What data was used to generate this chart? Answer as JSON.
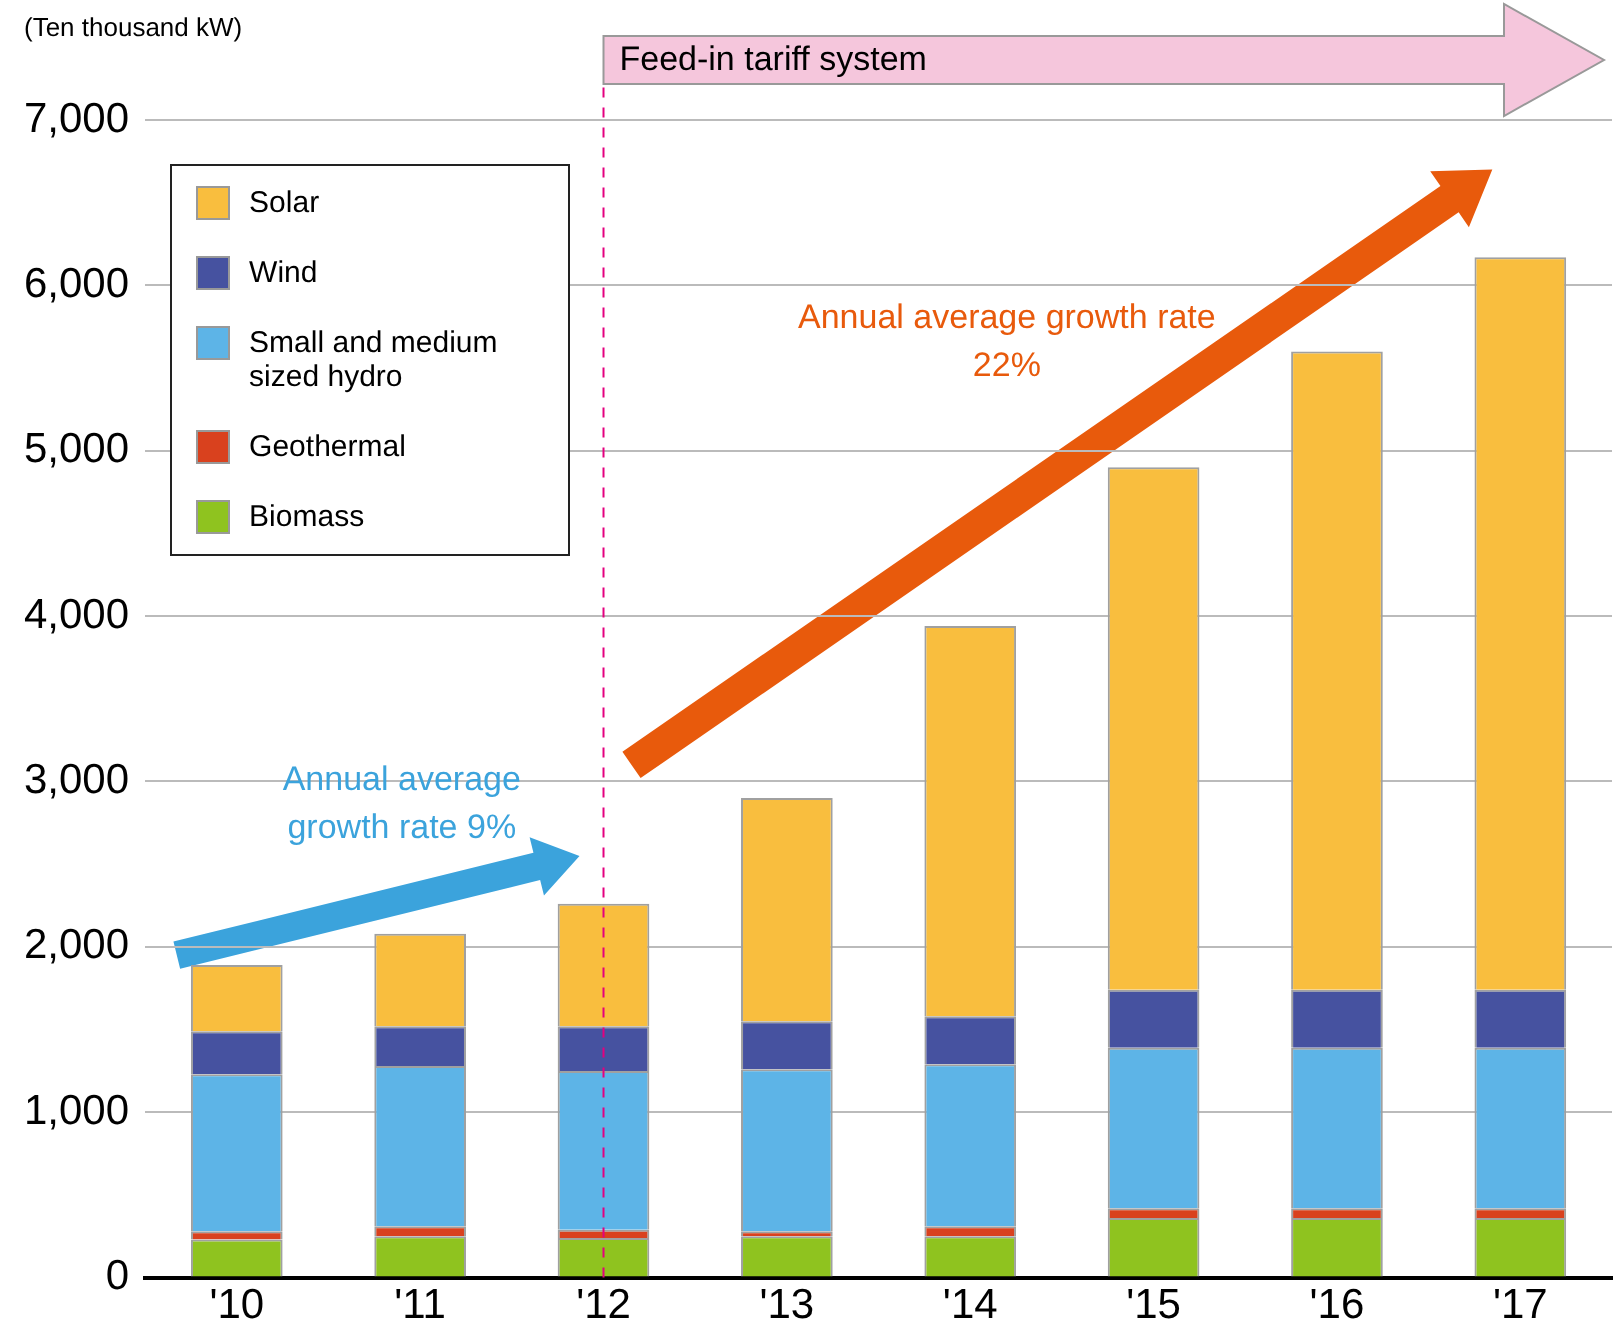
{
  "chart_data": {
    "type": "bar",
    "stacked": true,
    "ylabel": "(Ten thousand kW)",
    "categories": [
      "'10",
      "'11",
      "'12",
      "'13",
      "'14",
      "'15",
      "'16",
      "'17"
    ],
    "series": [
      {
        "name": "Biomass",
        "color": "#8fc31f",
        "values": [
          230,
          250,
          240,
          250,
          250,
          360,
          360,
          360
        ]
      },
      {
        "name": "Geothermal",
        "color": "#d9411e",
        "values": [
          50,
          60,
          50,
          30,
          60,
          60,
          60,
          60
        ]
      },
      {
        "name": "Small and medium sized hydro",
        "color": "#5db4e7",
        "values": [
          950,
          970,
          960,
          980,
          980,
          970,
          970,
          970
        ]
      },
      {
        "name": "Wind",
        "color": "#4652a0",
        "values": [
          260,
          240,
          270,
          290,
          290,
          350,
          350,
          350
        ]
      },
      {
        "name": "Solar",
        "color": "#f9be3e",
        "values": [
          400,
          560,
          740,
          1350,
          2360,
          3160,
          3860,
          4430
        ]
      }
    ],
    "ylim": [
      0,
      7000
    ],
    "yticks": [
      0,
      {
        "value": 1000,
        "label": "1,000"
      },
      {
        "value": 2000,
        "label": "2,000"
      },
      {
        "value": 3000,
        "label": "3,000"
      },
      {
        "value": 4000,
        "label": "4,000"
      },
      {
        "value": 5000,
        "label": "5,000"
      },
      {
        "value": 6000,
        "label": "6,000"
      },
      {
        "value": 7000,
        "label": "7,000"
      }
    ],
    "grid": "y",
    "legend": "top left",
    "ref_lines": [
      {
        "axis": "x",
        "value": "'12",
        "label": "Feed-in tariff system",
        "color": "#e4007f",
        "line_style": "dashed"
      }
    ],
    "annotations": [
      "Annual average growth rate 9%",
      "Annual average growth rate 22%"
    ]
  }
}
